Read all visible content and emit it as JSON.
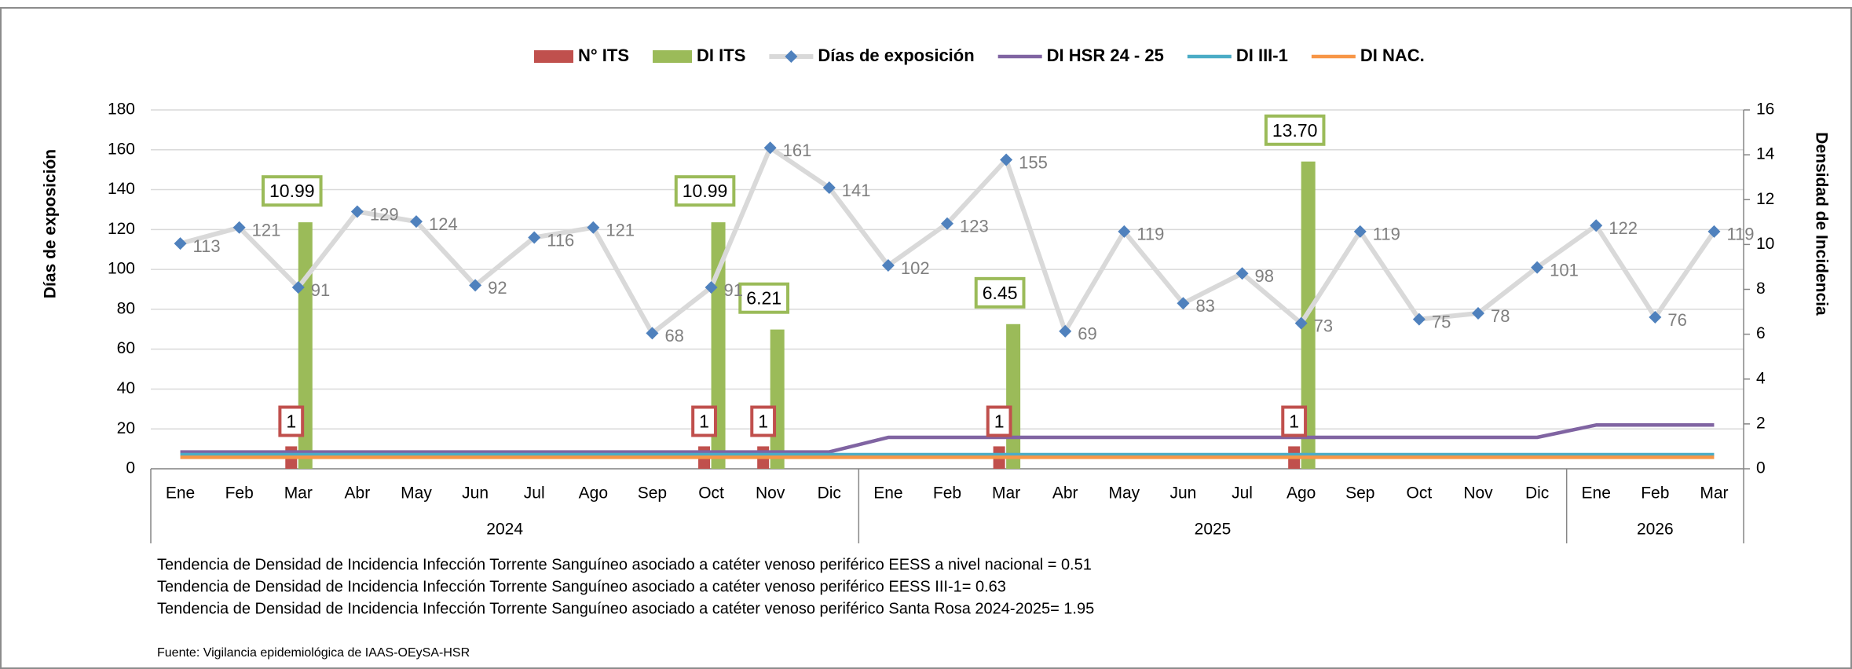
{
  "chart_data": {
    "type": "combo",
    "categories": [
      "Ene",
      "Feb",
      "Mar",
      "Abr",
      "May",
      "Jun",
      "Jul",
      "Ago",
      "Sep",
      "Oct",
      "Nov",
      "Dic",
      "Ene",
      "Feb",
      "Mar",
      "Abr",
      "May",
      "Jun",
      "Jul",
      "Ago",
      "Sep",
      "Oct",
      "Nov",
      "Dic",
      "Ene",
      "Feb",
      "Mar"
    ],
    "category_years": [
      "2024",
      "2024",
      "2024",
      "2024",
      "2024",
      "2024",
      "2024",
      "2024",
      "2024",
      "2024",
      "2024",
      "2024",
      "2025",
      "2025",
      "2025",
      "2025",
      "2025",
      "2025",
      "2025",
      "2025",
      "2025",
      "2025",
      "2025",
      "2025",
      "2026",
      "2026",
      "2026"
    ],
    "ylabel": "Días de exposición",
    "y2label": "Densidad de Incidencia",
    "ylim": [
      0,
      180
    ],
    "yticks": [
      0,
      20,
      40,
      60,
      80,
      100,
      120,
      140,
      160,
      180
    ],
    "y2lim": [
      0,
      16
    ],
    "y2ticks": [
      0,
      2,
      4,
      6,
      8,
      10,
      12,
      14,
      16
    ],
    "grid": true,
    "series": [
      {
        "name": "N° ITS",
        "type": "bar",
        "axis": "y2",
        "color": "#c0504d",
        "values": [
          null,
          null,
          1,
          null,
          null,
          null,
          null,
          null,
          null,
          1,
          1,
          null,
          null,
          null,
          1,
          null,
          null,
          null,
          null,
          1,
          null,
          null,
          null,
          null,
          null,
          null,
          null
        ]
      },
      {
        "name": "DI ITS",
        "type": "bar",
        "axis": "y2",
        "color": "#9bbb59",
        "values": [
          null,
          null,
          10.99,
          null,
          null,
          null,
          null,
          null,
          null,
          10.99,
          6.21,
          null,
          null,
          null,
          6.45,
          null,
          null,
          null,
          null,
          13.7,
          null,
          null,
          null,
          null,
          null,
          null,
          null
        ],
        "value_labels": [
          null,
          null,
          "10.99",
          null,
          null,
          null,
          null,
          null,
          null,
          "10.99",
          "6.21",
          null,
          null,
          null,
          "6.45",
          null,
          null,
          null,
          null,
          "13.70",
          null,
          null,
          null,
          null,
          null,
          null,
          null
        ]
      },
      {
        "name": "Días de exposición",
        "type": "line",
        "axis": "y",
        "color": "#d9d9d9",
        "marker_color": "#4f81bd",
        "values": [
          113,
          121,
          91,
          129,
          124,
          92,
          116,
          121,
          68,
          91,
          161,
          141,
          102,
          123,
          155,
          69,
          119,
          83,
          98,
          73,
          119,
          75,
          78,
          101,
          122,
          76,
          119
        ]
      },
      {
        "name": "DI HSR 24 - 25",
        "type": "line",
        "axis": "y2",
        "color": "#8064a2",
        "values": [
          0.75,
          0.75,
          0.75,
          0.75,
          0.75,
          0.75,
          0.75,
          0.75,
          0.75,
          0.75,
          0.75,
          0.75,
          1.4,
          1.4,
          1.4,
          1.4,
          1.4,
          1.4,
          1.4,
          1.4,
          1.4,
          1.4,
          1.4,
          1.4,
          1.95,
          1.95,
          1.95
        ]
      },
      {
        "name": "DI III-1",
        "type": "line",
        "axis": "y2",
        "color": "#4bacc6",
        "values": [
          0.63,
          0.63,
          0.63,
          0.63,
          0.63,
          0.63,
          0.63,
          0.63,
          0.63,
          0.63,
          0.63,
          0.63,
          0.63,
          0.63,
          0.63,
          0.63,
          0.63,
          0.63,
          0.63,
          0.63,
          0.63,
          0.63,
          0.63,
          0.63,
          0.63,
          0.63,
          0.63
        ]
      },
      {
        "name": "DI NAC.",
        "type": "line",
        "axis": "y2",
        "color": "#f79646",
        "values": [
          0.51,
          0.51,
          0.51,
          0.51,
          0.51,
          0.51,
          0.51,
          0.51,
          0.51,
          0.51,
          0.51,
          0.51,
          0.51,
          0.51,
          0.51,
          0.51,
          0.51,
          0.51,
          0.51,
          0.51,
          0.51,
          0.51,
          0.51,
          0.51,
          0.51,
          0.51,
          0.51
        ]
      }
    ],
    "notes": [
      "Tendencia de Densidad de Incidencia Infección Torrente Sanguíneo asociado a catéter venoso periférico EESS a nivel nacional = 0.51",
      "Tendencia de Densidad de Incidencia Infección Torrente Sanguíneo asociado a catéter venoso periférico EESS III-1= 0.63",
      "Tendencia de Densidad de Incidencia Infección Torrente Sanguíneo asociado a catéter venoso periférico Santa Rosa 2024-2025= 1.95"
    ],
    "source": "Fuente: Vigilancia epidemiológica de IAAS-OEySA-HSR"
  }
}
